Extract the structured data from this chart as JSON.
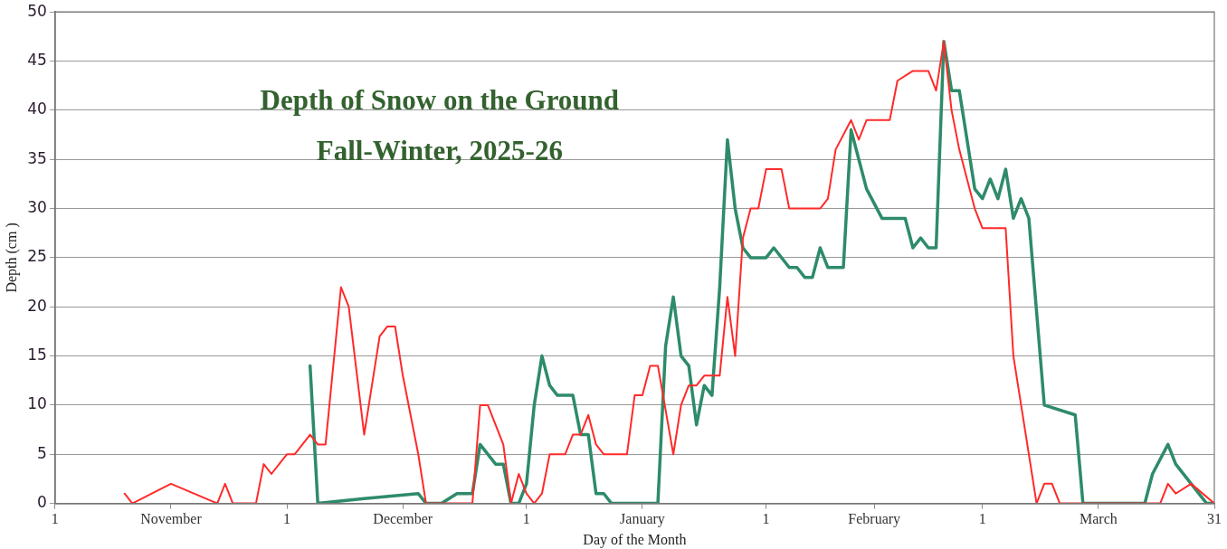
{
  "chart_data": {
    "type": "line",
    "title": "Depth of Snow on the Ground",
    "subtitle": "Fall-Winter, 2025-26",
    "xlabel": "Day of the Month",
    "ylabel": "Depth (cm )",
    "xlim": [
      "2025-11-01",
      "2026-03-31"
    ],
    "xticks": [
      {
        "value": "2025-11-01",
        "label": "1"
      },
      {
        "value": "2025-11-16",
        "label": "November"
      },
      {
        "value": "2025-12-01",
        "label": "1"
      },
      {
        "value": "2025-12-16",
        "label": "December"
      },
      {
        "value": "2026-01-01",
        "label": "1"
      },
      {
        "value": "2026-01-16",
        "label": "January"
      },
      {
        "value": "2026-02-01",
        "label": "1"
      },
      {
        "value": "2026-02-15",
        "label": "February"
      },
      {
        "value": "2026-03-01",
        "label": "1"
      },
      {
        "value": "2026-03-16",
        "label": "March"
      },
      {
        "value": "2026-03-31",
        "label": "31"
      }
    ],
    "ylim": [
      0,
      50
    ],
    "yticks": [
      0,
      5,
      10,
      15,
      20,
      25,
      30,
      35,
      40,
      45,
      50
    ],
    "grid": "y",
    "legend": false,
    "marker": "none",
    "line_style": "solid",
    "series": [
      {
        "color": "#ff2a2a",
        "x": [
          "2025-11-10",
          "2025-11-11",
          "2025-11-16",
          "2025-11-22",
          "2025-11-23",
          "2025-11-24",
          "2025-11-27",
          "2025-11-28",
          "2025-11-29",
          "2025-12-01",
          "2025-12-02",
          "2025-12-04",
          "2025-12-05",
          "2025-12-06",
          "2025-12-08",
          "2025-12-09",
          "2025-12-11",
          "2025-12-12",
          "2025-12-13",
          "2025-12-14",
          "2025-12-15",
          "2025-12-16",
          "2025-12-18",
          "2025-12-19",
          "2025-12-25",
          "2025-12-26",
          "2025-12-27",
          "2025-12-28",
          "2025-12-29",
          "2025-12-30",
          "2025-12-31",
          "2026-01-01",
          "2026-01-02",
          "2026-01-03",
          "2026-01-04",
          "2026-01-06",
          "2026-01-07",
          "2026-01-08",
          "2026-01-09",
          "2026-01-10",
          "2026-01-11",
          "2026-01-14",
          "2026-01-15",
          "2026-01-16",
          "2026-01-17",
          "2026-01-18",
          "2026-01-20",
          "2026-01-21",
          "2026-01-22",
          "2026-01-23",
          "2026-01-24",
          "2026-01-26",
          "2026-01-27",
          "2026-01-28",
          "2026-01-29",
          "2026-01-30",
          "2026-01-31",
          "2026-02-01",
          "2026-02-03",
          "2026-02-04",
          "2026-02-08",
          "2026-02-09",
          "2026-02-10",
          "2026-02-12",
          "2026-02-13",
          "2026-02-14",
          "2026-02-17",
          "2026-02-18",
          "2026-02-20",
          "2026-02-22",
          "2026-02-23",
          "2026-02-24",
          "2026-02-25",
          "2026-02-26",
          "2026-02-27",
          "2026-02-28",
          "2026-03-01",
          "2026-03-04",
          "2026-03-05",
          "2026-03-06",
          "2026-03-08",
          "2026-03-09",
          "2026-03-10",
          "2026-03-11",
          "2026-03-24",
          "2026-03-25",
          "2026-03-26",
          "2026-03-28",
          "2026-03-31"
        ],
        "values": [
          1,
          0,
          2,
          0,
          2,
          0,
          0,
          4,
          3,
          5,
          5,
          7,
          6,
          6,
          22,
          20,
          7,
          12,
          17,
          18,
          18,
          13,
          5,
          0,
          0,
          10,
          10,
          8,
          6,
          0,
          3,
          1,
          0,
          1,
          5,
          5,
          7,
          7,
          9,
          6,
          5,
          5,
          11,
          11,
          14,
          14,
          5,
          10,
          12,
          12,
          13,
          13,
          21,
          15,
          27,
          30,
          30,
          34,
          34,
          30,
          30,
          31,
          36,
          39,
          37,
          39,
          39,
          43,
          44,
          44,
          42,
          47,
          40,
          36,
          33,
          30,
          28,
          28,
          15,
          10,
          0,
          2,
          2,
          0,
          0,
          2,
          1,
          2,
          0
        ]
      },
      {
        "color": "#2e8b6a",
        "x": [
          "2025-12-04",
          "2025-12-05",
          "2025-12-11",
          "2025-12-18",
          "2025-12-19",
          "2025-12-21",
          "2025-12-23",
          "2025-12-25",
          "2025-12-26",
          "2025-12-28",
          "2025-12-29",
          "2025-12-30",
          "2025-12-31",
          "2026-01-01",
          "2026-01-02",
          "2026-01-03",
          "2026-01-04",
          "2026-01-05",
          "2026-01-07",
          "2026-01-08",
          "2026-01-09",
          "2026-01-10",
          "2026-01-11",
          "2026-01-12",
          "2026-01-18",
          "2026-01-19",
          "2026-01-20",
          "2026-01-21",
          "2026-01-22",
          "2026-01-23",
          "2026-01-24",
          "2026-01-25",
          "2026-01-26",
          "2026-01-27",
          "2026-01-28",
          "2026-01-29",
          "2026-01-30",
          "2026-02-01",
          "2026-02-02",
          "2026-02-04",
          "2026-02-05",
          "2026-02-06",
          "2026-02-07",
          "2026-02-08",
          "2026-02-09",
          "2026-02-11",
          "2026-02-12",
          "2026-02-13",
          "2026-02-14",
          "2026-02-16",
          "2026-02-19",
          "2026-02-20",
          "2026-02-21",
          "2026-02-22",
          "2026-02-23",
          "2026-02-24",
          "2026-02-25",
          "2026-02-26",
          "2026-02-28",
          "2026-03-01",
          "2026-03-02",
          "2026-03-03",
          "2026-03-04",
          "2026-03-05",
          "2026-03-06",
          "2026-03-07",
          "2026-03-09",
          "2026-03-13",
          "2026-03-14",
          "2026-03-22",
          "2026-03-23",
          "2026-03-25",
          "2026-03-26",
          "2026-03-28",
          "2026-03-30",
          "2026-03-31"
        ],
        "values": [
          14,
          0,
          0.5,
          1,
          0,
          0,
          1,
          1,
          6,
          4,
          4,
          0,
          0,
          2,
          10,
          15,
          12,
          11,
          11,
          7,
          7,
          1,
          1,
          0,
          0,
          16,
          21,
          15,
          14,
          8,
          12,
          11,
          22,
          37,
          30,
          26,
          25,
          25,
          26,
          24,
          24,
          23,
          23,
          26,
          24,
          24,
          38,
          35,
          32,
          29,
          29,
          26,
          27,
          26,
          26,
          47,
          42,
          42,
          32,
          31,
          33,
          31,
          34,
          29,
          31,
          29,
          10,
          9,
          0,
          0,
          3,
          6,
          4,
          2,
          0,
          0
        ]
      }
    ]
  }
}
